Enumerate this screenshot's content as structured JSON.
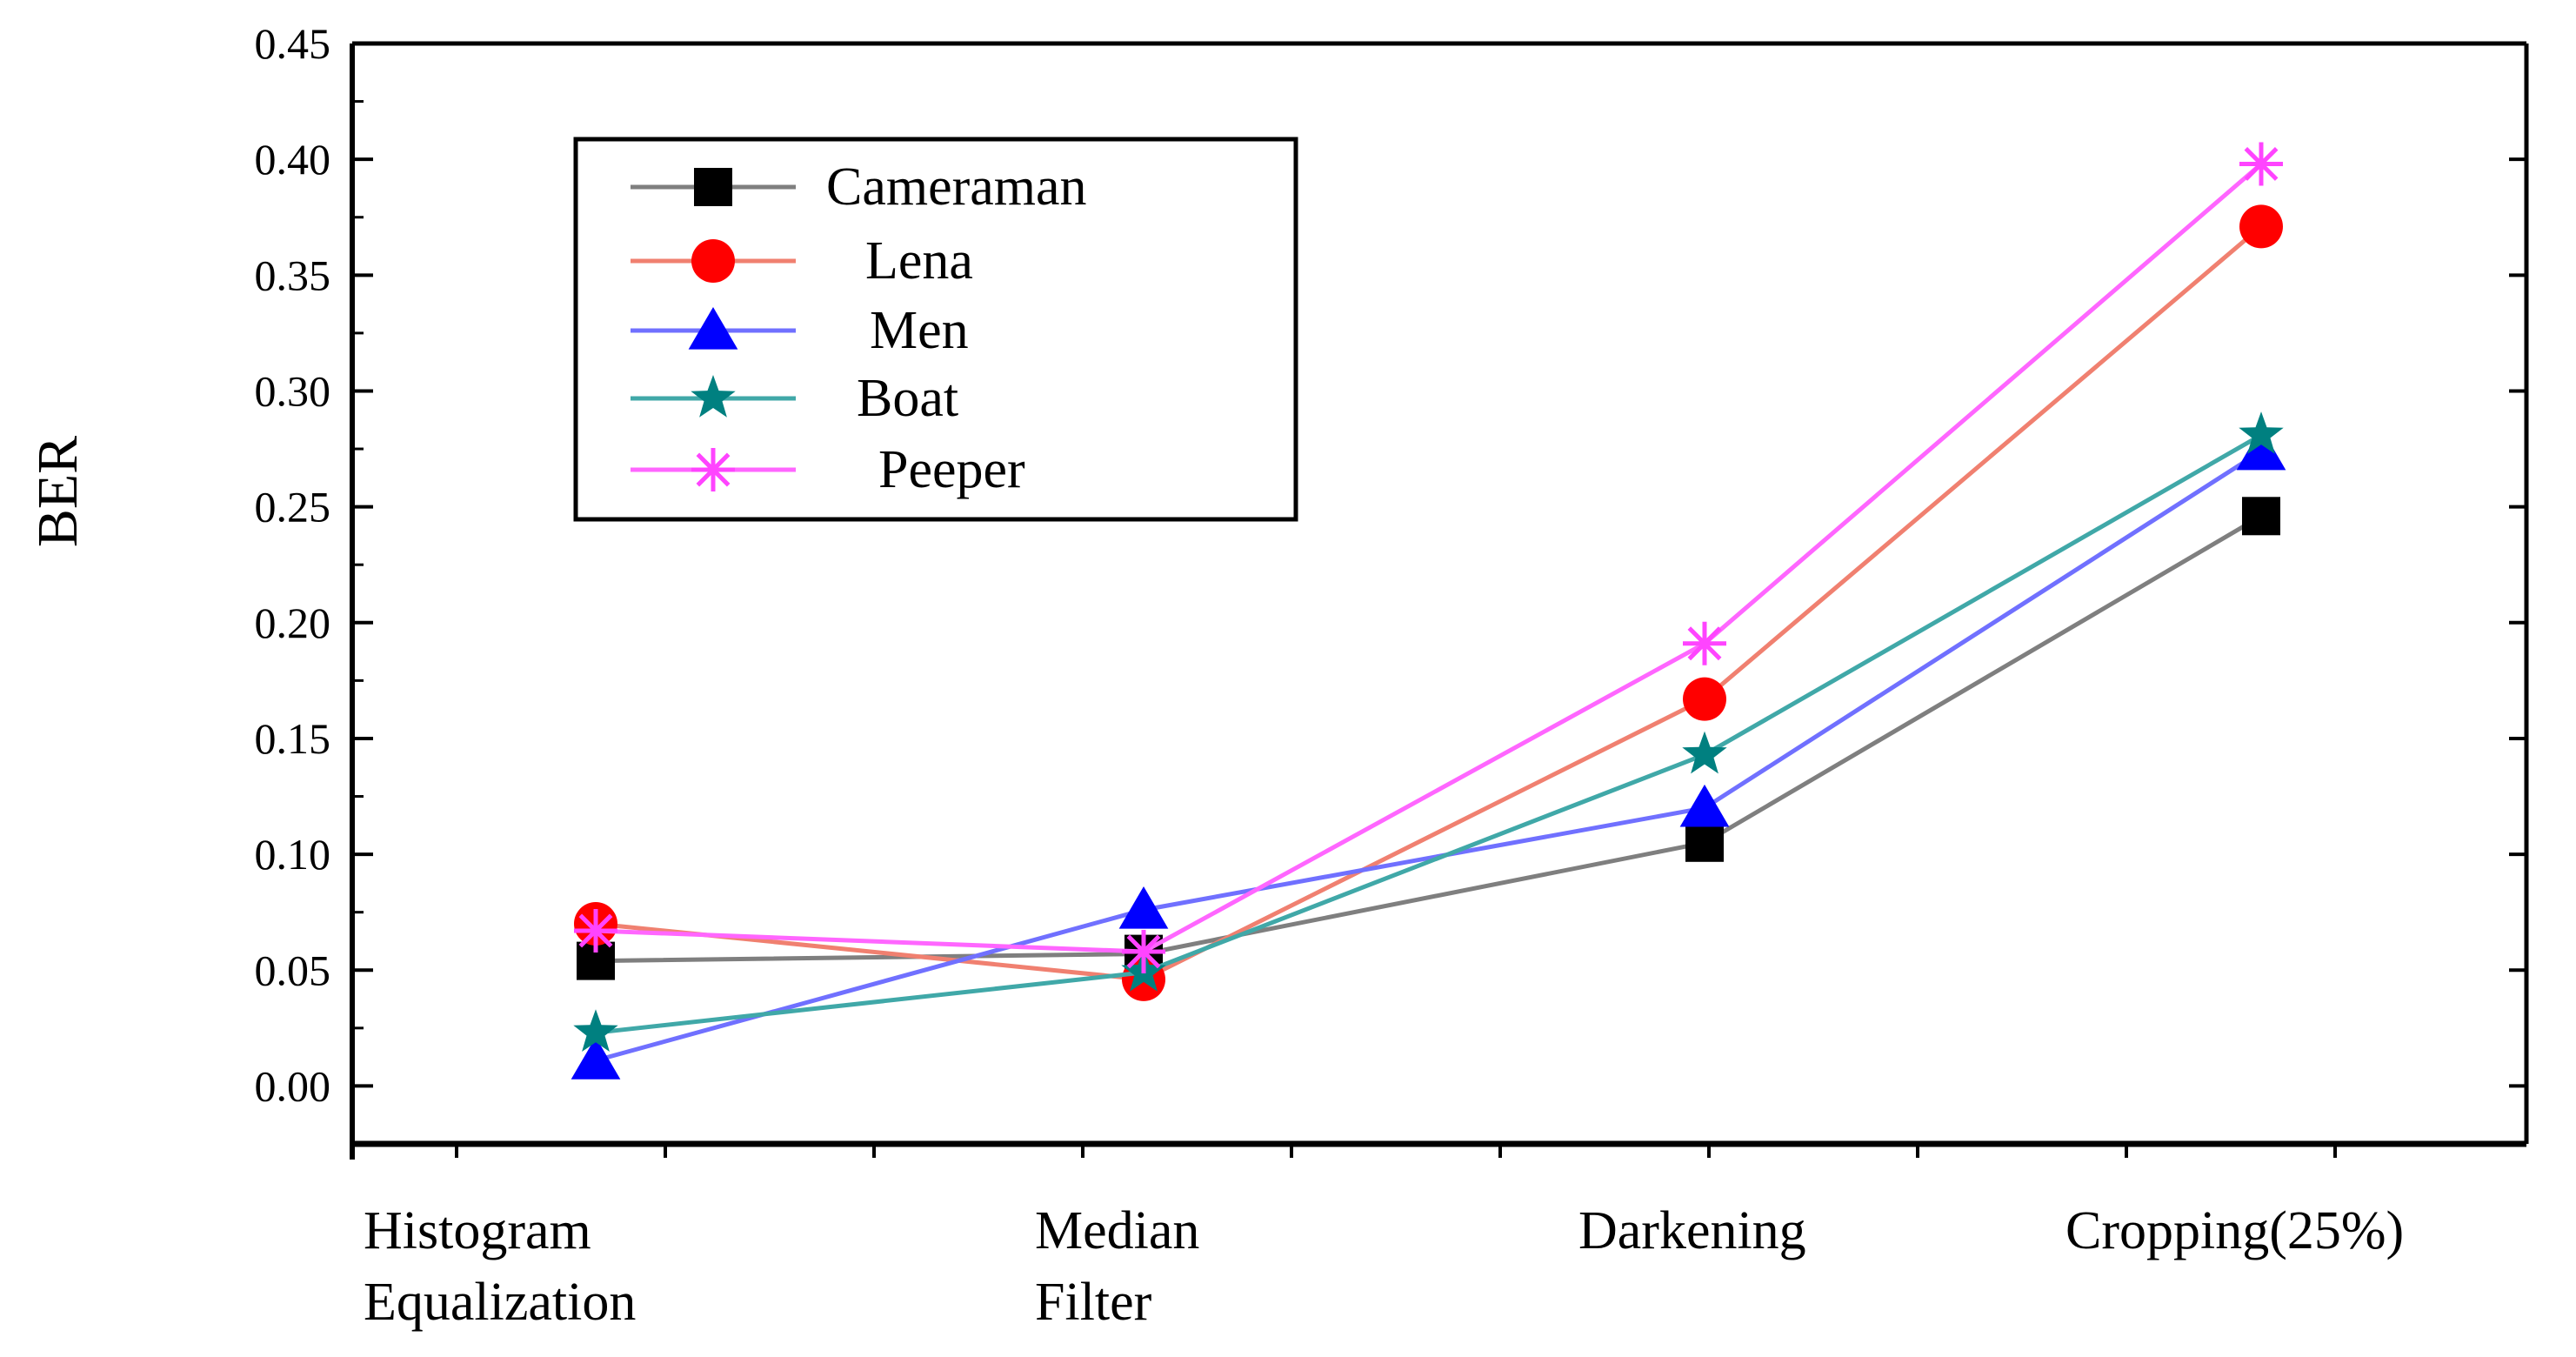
{
  "chart_data": {
    "type": "line",
    "title": "",
    "xlabel": "",
    "ylabel": "BER",
    "ylim": [
      -0.025,
      0.45
    ],
    "yticks": [
      "0.00",
      "0.05",
      "0.10",
      "0.15",
      "0.20",
      "0.25",
      "0.30",
      "0.35",
      "0.40",
      "0.45"
    ],
    "categories": [
      [
        "Histogram",
        "Equalization"
      ],
      [
        "Median",
        "Filter"
      ],
      [
        "Darkening"
      ],
      [
        "Cropping(25%)"
      ]
    ],
    "grid": false,
    "legend_position": "top-left",
    "series": [
      {
        "name": "Cameraman",
        "color": "#7f7f7f",
        "marker": "square",
        "marker_color": "#000000",
        "values": [
          0.054,
          0.057,
          0.105,
          0.246
        ]
      },
      {
        "name": "Lena",
        "color": "#f08070",
        "marker": "circle",
        "marker_color": "#ff0000",
        "values": [
          0.07,
          0.046,
          0.167,
          0.371
        ]
      },
      {
        "name": "Men",
        "color": "#7070ff",
        "marker": "triangle",
        "marker_color": "#0000ff",
        "values": [
          0.011,
          0.076,
          0.12,
          0.274
        ]
      },
      {
        "name": "Boat",
        "color": "#40a8a8",
        "marker": "star",
        "marker_color": "#008080",
        "values": [
          0.023,
          0.049,
          0.143,
          0.281
        ]
      },
      {
        "name": "Peeper",
        "color": "#ff66ff",
        "marker": "asterisk",
        "marker_color": "#ff44ff",
        "values": [
          0.067,
          0.058,
          0.191,
          0.398
        ]
      }
    ]
  }
}
